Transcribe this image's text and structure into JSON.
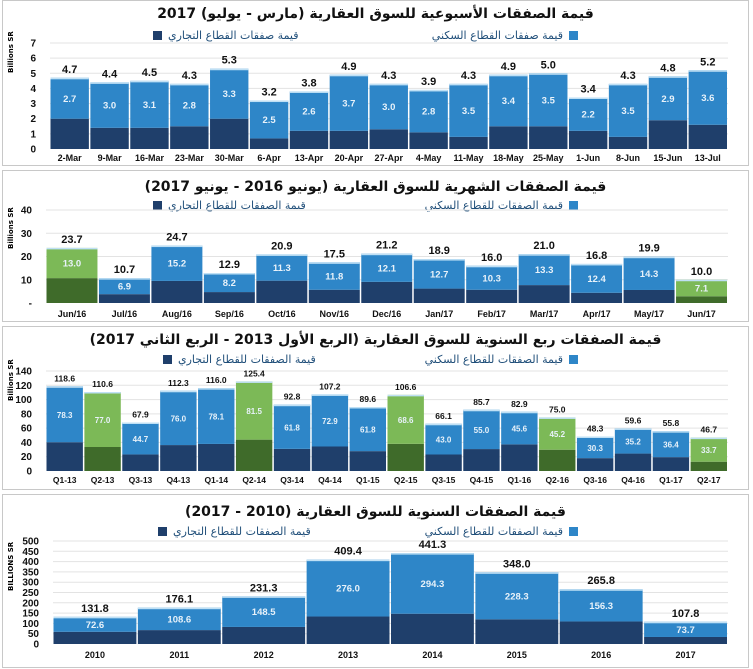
{
  "colors": {
    "residential": "#2e86c8",
    "commercial": "#1f3f6b",
    "highlight_res": "#7cb957",
    "highlight_com": "#3f6b2a",
    "grid": "#e3e3e3"
  },
  "charts": [
    {
      "title": "قيمة الصفقات الأسبوعية للسوق العقارية (مارس - يوليو) 2017",
      "legend_residential": "قيمة صفقات القطاع السكني",
      "legend_commercial": "قيمة صفقات القطاع التجاري",
      "ylabel": "Billions SR",
      "chart_data": {
        "type": "bar",
        "stacked": true,
        "ylim": [
          0,
          7
        ],
        "yticks": [
          "0",
          "1",
          "2",
          "3",
          "4",
          "5",
          "6",
          "7"
        ],
        "categories": [
          "2-Mar",
          "9-Mar",
          "16-Mar",
          "23-Mar",
          "30-Mar",
          "6-Apr",
          "13-Apr",
          "20-Apr",
          "27-Apr",
          "4-May",
          "11-May",
          "18-May",
          "25-May",
          "1-Jun",
          "8-Jun",
          "15-Jun",
          "13-Jul"
        ],
        "residential": [
          2.7,
          3.0,
          3.1,
          2.8,
          3.3,
          2.5,
          2.6,
          3.7,
          3.0,
          2.8,
          3.5,
          3.4,
          3.5,
          2.2,
          3.5,
          2.9,
          3.6
        ],
        "total": [
          4.7,
          4.4,
          4.5,
          4.3,
          5.3,
          3.2,
          3.8,
          4.9,
          4.3,
          3.9,
          4.3,
          4.9,
          5.0,
          3.4,
          4.3,
          4.8,
          5.2
        ],
        "highlight": []
      }
    },
    {
      "title": "قيمة الصفقات الشهرية للسوق العقارية (يونيو 2016 - يونيو 2017)",
      "legend_residential": "قيمة الصفقات للقطاع السكني",
      "legend_commercial": "قيمة الصفقات للقطاع التجاري",
      "ylabel": "Billions SR",
      "chart_data": {
        "type": "bar",
        "stacked": true,
        "ylim": [
          0,
          40
        ],
        "yticks": [
          "-",
          "10",
          "20",
          "30",
          "40"
        ],
        "categories": [
          "Jun/16",
          "Jul/16",
          "Aug/16",
          "Sep/16",
          "Oct/16",
          "Nov/16",
          "Dec/16",
          "Jan/17",
          "Feb/17",
          "Mar/17",
          "Apr/17",
          "May/17",
          "Jun/17"
        ],
        "residential": [
          13.0,
          6.9,
          15.2,
          8.2,
          11.3,
          11.8,
          12.1,
          12.7,
          10.3,
          13.3,
          12.4,
          14.3,
          7.1
        ],
        "total": [
          23.7,
          10.7,
          24.7,
          12.9,
          20.9,
          17.5,
          21.2,
          18.9,
          16.0,
          21.0,
          16.8,
          19.9,
          10.0
        ],
        "highlight": [
          0,
          12
        ]
      }
    },
    {
      "title": "قيمة الصفقات ربع السنوية للسوق العقارية (الربع الأول 2013 - الربع الثاني 2017)",
      "legend_residential": "قيمة الصفقات للقطاع السكني",
      "legend_commercial": "قيمة الصفقات للقطاع التجاري",
      "ylabel": "Billions SR",
      "chart_data": {
        "type": "bar",
        "stacked": true,
        "ylim": [
          0,
          140
        ],
        "yticks": [
          "0",
          "20",
          "40",
          "60",
          "80",
          "100",
          "120",
          "140"
        ],
        "categories": [
          "Q1-13",
          "Q2-13",
          "Q3-13",
          "Q4-13",
          "Q1-14",
          "Q2-14",
          "Q3-14",
          "Q4-14",
          "Q1-15",
          "Q2-15",
          "Q3-15",
          "Q4-15",
          "Q1-16",
          "Q2-16",
          "Q3-16",
          "Q4-16",
          "Q1-17",
          "Q2-17"
        ],
        "residential": [
          78.3,
          77.0,
          44.7,
          76.0,
          78.1,
          81.5,
          61.8,
          72.9,
          61.8,
          68.6,
          43.0,
          55.0,
          45.6,
          45.2,
          30.3,
          35.2,
          36.4,
          33.7
        ],
        "total": [
          118.6,
          110.6,
          67.9,
          112.3,
          116.0,
          125.4,
          92.8,
          107.2,
          89.6,
          106.6,
          66.1,
          85.7,
          82.9,
          75.0,
          48.3,
          59.6,
          55.8,
          46.7
        ],
        "highlight": [
          1,
          5,
          9,
          13,
          17
        ]
      }
    },
    {
      "title": "قيمة الصفقات السنوية للسوق العقارية (2010 - 2017)",
      "legend_residential": "قيمة الصفقات للقطاع السكني",
      "legend_commercial": "قيمة الصفقات للقطاع التجاري",
      "ylabel": "BILLIONS SR",
      "chart_data": {
        "type": "bar",
        "stacked": true,
        "ylim": [
          0,
          500
        ],
        "yticks": [
          "0",
          "50",
          "100",
          "150",
          "200",
          "250",
          "300",
          "350",
          "400",
          "450",
          "500"
        ],
        "categories": [
          "2010",
          "2011",
          "2012",
          "2013",
          "2014",
          "2015",
          "2016",
          "2017"
        ],
        "residential": [
          72.6,
          108.6,
          148.5,
          276.0,
          294.3,
          228.3,
          156.3,
          73.7
        ],
        "total": [
          131.8,
          176.1,
          231.3,
          409.4,
          441.3,
          348.0,
          265.8,
          107.8
        ],
        "highlight": []
      }
    }
  ]
}
